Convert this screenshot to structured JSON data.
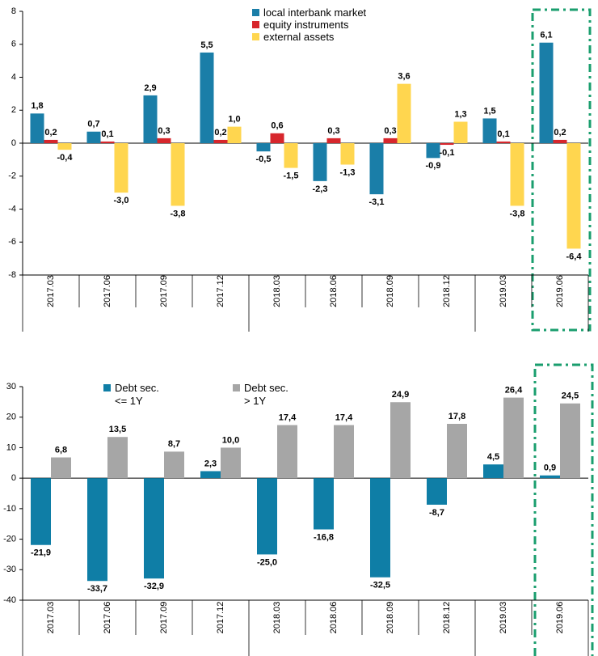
{
  "chart_data": [
    {
      "type": "bar",
      "categories": [
        "2017.03",
        "2017.06",
        "2017.09",
        "2017.12",
        "2018.03",
        "2018.06",
        "2018.09",
        "2018.12",
        "2019.03",
        "2019.06"
      ],
      "series": [
        {
          "name": "local interbank market",
          "color": "#1a7ea8",
          "values": [
            1.8,
            0.7,
            2.9,
            5.5,
            -0.5,
            -2.3,
            -3.1,
            -0.9,
            1.5,
            6.1
          ],
          "value_labels": [
            "1,8",
            "0,7",
            "2,9",
            "5,5",
            "-0,5",
            "-2,3",
            "-3,1",
            "-0,9",
            "1,5",
            "6,1"
          ]
        },
        {
          "name": "equity instruments",
          "color": "#d7262c",
          "values": [
            0.2,
            0.1,
            0.3,
            0.2,
            0.6,
            0.3,
            0.3,
            -0.1,
            0.1,
            0.2
          ],
          "value_labels": [
            "0,2",
            "0,1",
            "0,3",
            "0,2",
            "0,6",
            "0,3",
            "0,3",
            "-0,1",
            "0,1",
            "0,2"
          ]
        },
        {
          "name": "external assets",
          "color": "#ffd64f",
          "values": [
            -0.4,
            -3.0,
            -3.8,
            1.0,
            -1.5,
            -1.3,
            3.6,
            1.3,
            -3.8,
            -6.4
          ],
          "value_labels": [
            "-0,4",
            "-3,0",
            "-3,8",
            "1,0",
            "-1,5",
            "-1,3",
            "3,6",
            "1,3",
            "-3,8",
            "-6,4"
          ]
        }
      ],
      "ylim": [
        -8,
        8
      ],
      "yticks": [
        -8,
        -6,
        -4,
        -2,
        0,
        2,
        4,
        6,
        8
      ]
    },
    {
      "type": "bar",
      "categories": [
        "2017.03",
        "2017.06",
        "2017.09",
        "2017.12",
        "2018.03",
        "2018.06",
        "2018.09",
        "2018.12",
        "2019.03",
        "2019.06"
      ],
      "series": [
        {
          "name": "Debt sec. <= 1Y",
          "color": "#0f7ea6",
          "values": [
            -21.9,
            -33.7,
            -32.9,
            2.3,
            -25.0,
            -16.8,
            -32.5,
            -8.7,
            4.5,
            0.9
          ],
          "value_labels": [
            "-21,9",
            "-33,7",
            "-32,9",
            "2,3",
            "-25,0",
            "-16,8",
            "-32,5",
            "-8,7",
            "4,5",
            "0,9"
          ]
        },
        {
          "name": "Debt sec. > 1Y",
          "color": "#a6a6a6",
          "values": [
            6.8,
            13.5,
            8.7,
            10.0,
            17.4,
            17.4,
            24.9,
            17.8,
            26.4,
            24.5
          ],
          "value_labels": [
            "6,8",
            "13,5",
            "8,7",
            "10,0",
            "17,4",
            "17,4",
            "24,9",
            "17,8",
            "26,4",
            "24,5"
          ]
        }
      ],
      "ylim": [
        -40,
        30
      ],
      "yticks": [
        -40,
        -30,
        -20,
        -10,
        0,
        10,
        20,
        30
      ]
    }
  ]
}
